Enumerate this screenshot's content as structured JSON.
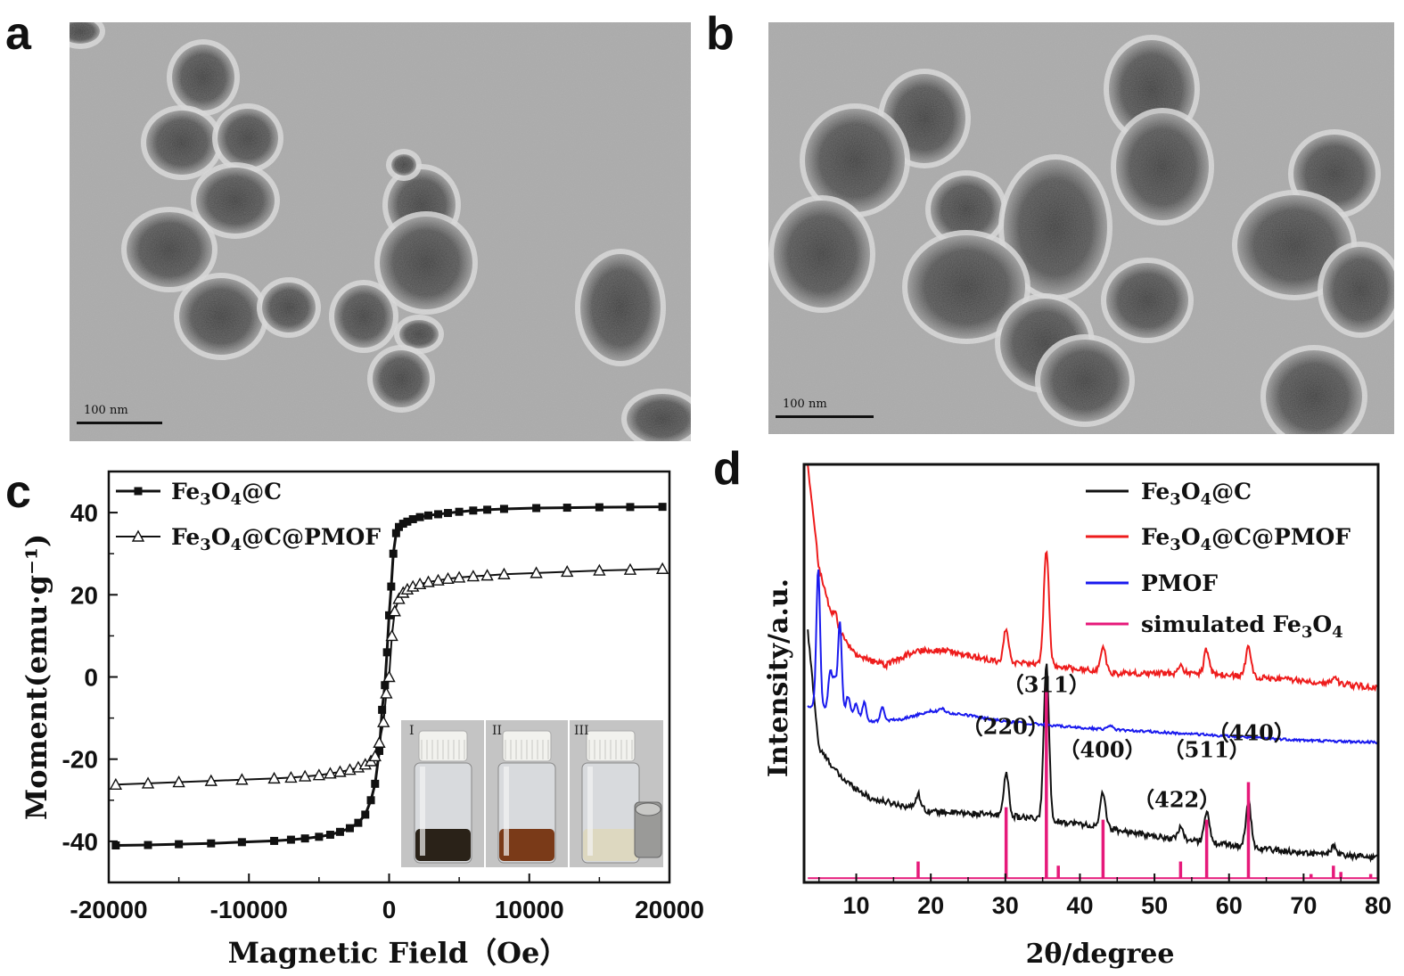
{
  "panels": {
    "a": {
      "letter": "a",
      "scale_label": "100 nm"
    },
    "b": {
      "letter": "b",
      "scale_label": "100 nm"
    },
    "c": {
      "letter": "c"
    },
    "d": {
      "letter": "d"
    }
  },
  "inset": {
    "labels": [
      "I",
      "II",
      "III"
    ]
  },
  "colors": {
    "fe3o4c": "#111111",
    "fe3o4c_pmof": "#ee1c1c",
    "pmof": "#1a1aee",
    "simulated": "#e6197a"
  },
  "chart_data": [
    {
      "id": "c",
      "type": "line",
      "xlabel": "Magnetic Field（Oe）",
      "ylabel": "Moment(emu·g⁻¹)",
      "xlim": [
        -20000,
        20000
      ],
      "ylim": [
        -50,
        50
      ],
      "xticks": [
        -20000,
        -10000,
        0,
        10000,
        20000
      ],
      "yticks": [
        -40,
        -20,
        0,
        20,
        40
      ],
      "legend_position": "top-left",
      "series": [
        {
          "name": "Fe3O4@C",
          "marker": "filled-square",
          "x": [
            -19500,
            -17200,
            -15000,
            -12700,
            -10500,
            -8200,
            -7000,
            -6000,
            -5000,
            -4200,
            -3500,
            -2800,
            -2200,
            -1700,
            -1300,
            -1000,
            -700,
            -500,
            -300,
            -150,
            0,
            150,
            300,
            500,
            700,
            1000,
            1300,
            1700,
            2200,
            2800,
            3500,
            4200,
            5000,
            6000,
            7000,
            8200,
            10500,
            12700,
            15000,
            17200,
            19500
          ],
          "y": [
            -41,
            -40.9,
            -40.7,
            -40.5,
            -40.2,
            -39.9,
            -39.6,
            -39.3,
            -38.9,
            -38.4,
            -37.7,
            -36.8,
            -35.5,
            -33.5,
            -30,
            -26,
            -18,
            -8,
            -2,
            6,
            15,
            22,
            30,
            35,
            36.5,
            37.3,
            37.8,
            38.4,
            38.9,
            39.3,
            39.6,
            39.9,
            40.2,
            40.5,
            40.7,
            40.9,
            41.1,
            41.2,
            41.3,
            41.35,
            41.4
          ]
        },
        {
          "name": "Fe3O4@C@PMOF",
          "marker": "open-triangle",
          "x": [
            -19500,
            -17200,
            -15000,
            -12700,
            -10500,
            -8200,
            -7000,
            -6000,
            -5000,
            -4200,
            -3500,
            -2800,
            -2200,
            -1700,
            -1300,
            -1000,
            -700,
            -400,
            -200,
            0,
            200,
            400,
            700,
            1000,
            1300,
            1700,
            2200,
            2800,
            3500,
            4200,
            5000,
            6000,
            7000,
            8200,
            10500,
            12700,
            15000,
            17200,
            19500
          ],
          "y": [
            -26.2,
            -25.9,
            -25.6,
            -25.3,
            -25,
            -24.7,
            -24.5,
            -24.2,
            -23.9,
            -23.5,
            -23.1,
            -22.6,
            -22,
            -21.3,
            -20.5,
            -19.3,
            -16,
            -11,
            -4,
            0,
            10,
            16,
            19,
            20.5,
            21.3,
            22,
            22.6,
            23.1,
            23.5,
            23.9,
            24.2,
            24.5,
            24.7,
            25,
            25.3,
            25.6,
            25.9,
            26.1,
            26.3
          ]
        }
      ]
    },
    {
      "id": "d",
      "type": "line",
      "xlabel": "2θ/degree",
      "ylabel": "Intensity/a.u.",
      "xlim": [
        3,
        80
      ],
      "xticks": [
        10,
        20,
        30,
        40,
        50,
        60,
        70,
        80
      ],
      "legend_position": "top-right",
      "annotations": [
        {
          "text": "（311）",
          "x": 35.5,
          "y": 0.455
        },
        {
          "text": "（220）",
          "x": 30,
          "y": 0.355
        },
        {
          "text": "（400）",
          "x": 43,
          "y": 0.3
        },
        {
          "text": "（422）",
          "x": 53,
          "y": 0.18
        },
        {
          "text": "（511）",
          "x": 57,
          "y": 0.3
        },
        {
          "text": "（440）",
          "x": 63,
          "y": 0.34
        }
      ],
      "series": [
        {
          "name": "Fe3O4@C",
          "peaks": [
            [
              18.3,
              0.035
            ],
            [
              30.1,
              0.1
            ],
            [
              35.5,
              0.37
            ],
            [
              43.1,
              0.085
            ],
            [
              53.5,
              0.03
            ],
            [
              57.0,
              0.075
            ],
            [
              62.6,
              0.11
            ],
            [
              74.0,
              0.02
            ]
          ],
          "baseline": [
            [
              3.5,
              0.6
            ],
            [
              5,
              0.32
            ],
            [
              8,
              0.25
            ],
            [
              12,
              0.2
            ],
            [
              20,
              0.17
            ],
            [
              30,
              0.16
            ],
            [
              40,
              0.14
            ],
            [
              50,
              0.11
            ],
            [
              60,
              0.09
            ],
            [
              70,
              0.07
            ],
            [
              80,
              0.06
            ]
          ]
        },
        {
          "name": "Fe3O4@C@PMOF",
          "peaks": [
            [
              7.2,
              0.04
            ],
            [
              30.1,
              0.08
            ],
            [
              35.5,
              0.27
            ],
            [
              43.1,
              0.06
            ],
            [
              53.5,
              0.02
            ],
            [
              57.0,
              0.06
            ],
            [
              62.6,
              0.075
            ],
            [
              74.2,
              0.015
            ]
          ],
          "baseline": [
            [
              3.5,
              1.0
            ],
            [
              5,
              0.75
            ],
            [
              7,
              0.62
            ],
            [
              10,
              0.54
            ],
            [
              14,
              0.52
            ],
            [
              18,
              0.555
            ],
            [
              22,
              0.555
            ],
            [
              28,
              0.53
            ],
            [
              35,
              0.52
            ],
            [
              45,
              0.5
            ],
            [
              55,
              0.5
            ],
            [
              65,
              0.49
            ],
            [
              75,
              0.475
            ],
            [
              80,
              0.465
            ]
          ]
        },
        {
          "name": "PMOF",
          "peaks": [
            [
              4.9,
              0.33
            ],
            [
              6.5,
              0.09
            ],
            [
              7.1,
              0.07
            ],
            [
              7.8,
              0.21
            ],
            [
              8.9,
              0.04
            ],
            [
              10.0,
              0.03
            ],
            [
              11.1,
              0.04
            ],
            [
              13.5,
              0.035
            ],
            [
              21.5,
              0.01
            ],
            [
              44,
              0.01
            ]
          ],
          "baseline": [
            [
              3.5,
              0.42
            ],
            [
              5,
              0.42
            ],
            [
              8,
              0.41
            ],
            [
              12,
              0.385
            ],
            [
              16,
              0.39
            ],
            [
              20,
              0.41
            ],
            [
              25,
              0.4
            ],
            [
              30,
              0.385
            ],
            [
              40,
              0.37
            ],
            [
              50,
              0.36
            ],
            [
              60,
              0.35
            ],
            [
              70,
              0.34
            ],
            [
              80,
              0.335
            ]
          ]
        },
        {
          "name": "simulated Fe3O4",
          "sticks": [
            [
              18.3,
              0.04
            ],
            [
              30.1,
              0.17
            ],
            [
              35.5,
              0.46
            ],
            [
              37.1,
              0.03
            ],
            [
              43.1,
              0.14
            ],
            [
              53.5,
              0.04
            ],
            [
              57.0,
              0.14
            ],
            [
              62.6,
              0.23
            ],
            [
              71.0,
              0.01
            ],
            [
              74.0,
              0.03
            ],
            [
              75.0,
              0.015
            ],
            [
              79.0,
              0.01
            ]
          ]
        }
      ]
    }
  ]
}
